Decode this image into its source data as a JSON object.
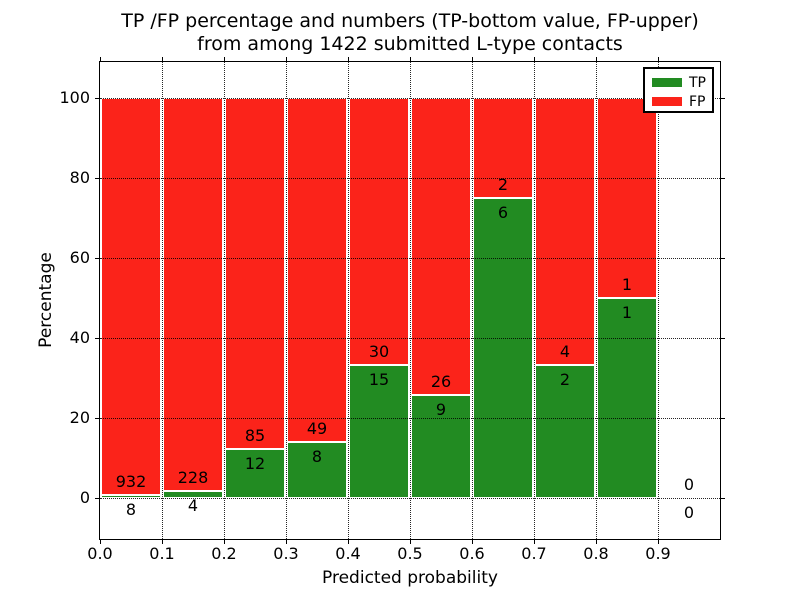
{
  "chart_data": {
    "type": "bar",
    "subtype": "stacked-percentage-histogram",
    "title_line1": "TP /FP percentage and numbers (TP-bottom value, FP-upper)",
    "title_line2": "from among 1422 submitted L-type contacts",
    "total_submitted": 1422,
    "xlabel": "Predicted probability",
    "ylabel": "Percentage",
    "x_tick_labels": [
      "0.0",
      "0.1",
      "0.2",
      "0.3",
      "0.4",
      "0.5",
      "0.6",
      "0.7",
      "0.8",
      "0.9"
    ],
    "y_ticks": [
      0,
      20,
      40,
      60,
      80,
      100
    ],
    "y_tick_labels": [
      "0",
      "20",
      "40",
      "60",
      "80",
      "100"
    ],
    "xlim": [
      0.0,
      1.0
    ],
    "ylim": [
      -10.5,
      108.8
    ],
    "grid": true,
    "annotation_note": "TP count printed below segment boundary, FP count printed above it",
    "legend": {
      "position": "upper-right",
      "entries": [
        {
          "label": "TP",
          "color": "#228b22"
        },
        {
          "label": "FP",
          "color": "#fb231a"
        }
      ]
    },
    "colors": {
      "tp": "#228b22",
      "fp": "#fb231a",
      "grid": "#000000",
      "text": "#000000"
    },
    "bins": [
      {
        "x0": 0.0,
        "x1": 0.1,
        "tp": 8,
        "fp": 932
      },
      {
        "x0": 0.1,
        "x1": 0.2,
        "tp": 4,
        "fp": 228
      },
      {
        "x0": 0.2,
        "x1": 0.3,
        "tp": 12,
        "fp": 85
      },
      {
        "x0": 0.3,
        "x1": 0.4,
        "tp": 8,
        "fp": 49
      },
      {
        "x0": 0.4,
        "x1": 0.5,
        "tp": 15,
        "fp": 30
      },
      {
        "x0": 0.5,
        "x1": 0.6,
        "tp": 9,
        "fp": 26
      },
      {
        "x0": 0.6,
        "x1": 0.7,
        "tp": 6,
        "fp": 2
      },
      {
        "x0": 0.7,
        "x1": 0.8,
        "tp": 2,
        "fp": 4
      },
      {
        "x0": 0.8,
        "x1": 0.9,
        "tp": 1,
        "fp": 1
      },
      {
        "x0": 0.9,
        "x1": 1.0,
        "tp": 0,
        "fp": 0
      }
    ]
  }
}
